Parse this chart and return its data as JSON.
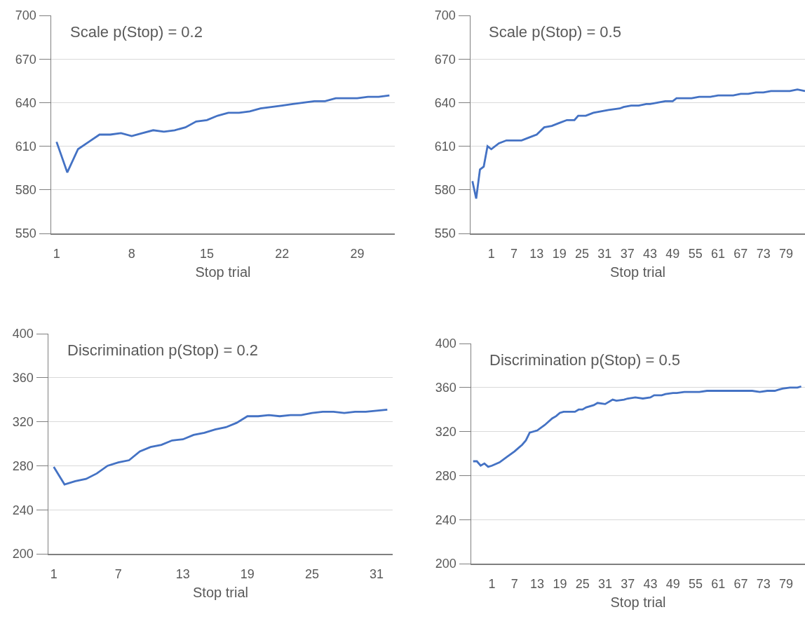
{
  "chart_data": [
    {
      "type": "line",
      "title": "Scale p(Stop) = 0.2",
      "xlabel": "Stop trial",
      "grid": "y",
      "xlim": [
        0.5,
        32.5
      ],
      "xticks": [
        1,
        8,
        15,
        22,
        29
      ],
      "ylim": [
        550,
        700
      ],
      "yticks": [
        550,
        580,
        610,
        640,
        670,
        700
      ],
      "x": [
        1,
        2,
        3,
        4,
        5,
        6,
        7,
        8,
        9,
        10,
        11,
        12,
        13,
        14,
        15,
        16,
        17,
        18,
        19,
        20,
        21,
        22,
        23,
        24,
        25,
        26,
        27,
        28,
        29,
        30,
        31,
        32
      ],
      "series": [
        {
          "color": "#4472c4",
          "values": [
            613,
            592,
            608,
            613,
            618,
            618,
            619,
            617,
            619,
            621,
            620,
            621,
            623,
            627,
            628,
            631,
            633,
            633,
            634,
            636,
            637,
            638,
            639,
            640,
            641,
            641,
            643,
            643,
            643,
            644,
            644,
            645
          ]
        }
      ]
    },
    {
      "type": "line",
      "title": "Scale p(Stop) = 0.5",
      "xlabel": "Stop trial",
      "grid": "y",
      "xlim": [
        -4.5,
        84
      ],
      "xticks": [
        1,
        7,
        13,
        19,
        25,
        31,
        37,
        43,
        49,
        55,
        61,
        67,
        73,
        79
      ],
      "ylim": [
        550,
        700
      ],
      "yticks": [
        550,
        580,
        610,
        640,
        670,
        700
      ],
      "x": [
        -4,
        -3,
        -2,
        -1,
        0,
        1,
        3,
        5,
        7,
        8,
        9,
        11,
        13,
        15,
        17,
        19,
        21,
        23,
        24,
        26,
        28,
        30,
        32,
        35,
        36,
        38,
        40,
        42,
        43,
        45,
        47,
        49,
        50,
        52,
        54,
        56,
        58,
        59,
        61,
        63,
        65,
        67,
        69,
        71,
        73,
        75,
        76,
        78,
        80,
        82,
        84
      ],
      "series": [
        {
          "color": "#4472c4",
          "values": [
            586,
            574,
            594,
            596,
            610,
            608,
            612,
            614,
            614,
            614,
            614,
            616,
            618,
            623,
            624,
            626,
            628,
            628,
            631,
            631,
            633,
            634,
            635,
            636,
            637,
            638,
            638,
            639,
            639,
            640,
            641,
            641,
            643,
            643,
            643,
            644,
            644,
            644,
            645,
            645,
            645,
            646,
            646,
            647,
            647,
            648,
            648,
            648,
            648,
            649,
            648
          ]
        }
      ]
    },
    {
      "type": "line",
      "title": "Discrimination p(Stop) = 0.2",
      "xlabel": "Stop trial",
      "grid": "y",
      "xlim": [
        0.5,
        32.5
      ],
      "xticks": [
        1,
        7,
        13,
        19,
        25,
        31
      ],
      "ylim": [
        200,
        400
      ],
      "yticks": [
        200,
        240,
        280,
        320,
        360,
        400
      ],
      "x": [
        1,
        2,
        3,
        4,
        5,
        6,
        7,
        8,
        9,
        10,
        11,
        12,
        13,
        14,
        15,
        16,
        17,
        18,
        19,
        20,
        21,
        22,
        23,
        24,
        25,
        26,
        27,
        28,
        29,
        30,
        31,
        32
      ],
      "series": [
        {
          "color": "#4472c4",
          "values": [
            279,
            263,
            266,
            268,
            273,
            280,
            283,
            285,
            293,
            297,
            299,
            303,
            304,
            308,
            310,
            313,
            315,
            319,
            325,
            325,
            326,
            325,
            326,
            326,
            328,
            329,
            329,
            328,
            329,
            329,
            330,
            331
          ]
        }
      ]
    },
    {
      "type": "line",
      "title": "Discrimination p(Stop) = 0.5",
      "xlabel": "Stop trial",
      "grid": "y",
      "xlim": [
        -4.5,
        84
      ],
      "xticks": [
        1,
        7,
        13,
        19,
        25,
        31,
        37,
        43,
        49,
        55,
        61,
        67,
        73,
        79
      ],
      "ylim": [
        200,
        400
      ],
      "yticks": [
        200,
        240,
        280,
        320,
        360,
        400
      ],
      "x": [
        -4,
        -3,
        -2,
        -1,
        0,
        1,
        3,
        5,
        7,
        8,
        9,
        10,
        11,
        13,
        15,
        17,
        18,
        19,
        20,
        23,
        24,
        25,
        26,
        28,
        29,
        31,
        33,
        34,
        36,
        37,
        39,
        41,
        43,
        44,
        46,
        47,
        49,
        50,
        52,
        53,
        55,
        56,
        58,
        60,
        62,
        65,
        67,
        69,
        70,
        72,
        74,
        76,
        77,
        78,
        80,
        82,
        83
      ],
      "series": [
        {
          "color": "#4472c4",
          "values": [
            293,
            293,
            289,
            291,
            288,
            289,
            292,
            297,
            302,
            305,
            308,
            312,
            319,
            321,
            326,
            332,
            334,
            337,
            338,
            338,
            340,
            340,
            342,
            344,
            346,
            345,
            349,
            348,
            349,
            350,
            351,
            350,
            351,
            353,
            353,
            354,
            355,
            355,
            356,
            356,
            356,
            356,
            357,
            357,
            357,
            357,
            357,
            357,
            357,
            356,
            357,
            357,
            358,
            359,
            360,
            360,
            361
          ]
        }
      ]
    }
  ]
}
